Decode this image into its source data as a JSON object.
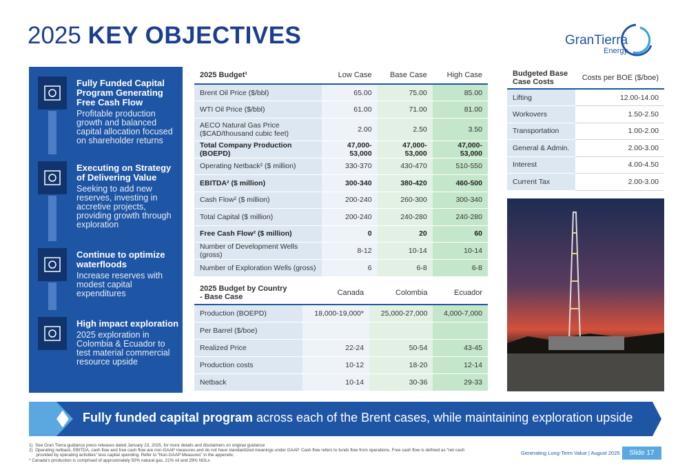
{
  "title": {
    "light": "2025",
    "bold": "KEY OBJECTIVES"
  },
  "logo": {
    "name": "GranTierra",
    "sub": "Energy"
  },
  "objectives": [
    {
      "heading": "Fully Funded Capital Program Generating Free Cash Flow",
      "body": "Profitable production growth and balanced capital allocation focused on shareholder returns"
    },
    {
      "heading": "Executing on Strategy of Delivering Value",
      "body": "Seeking to add new reserves, investing in accretive projects, providing growth through exploration"
    },
    {
      "heading": "Continue to optimize waterfloods",
      "body": "Increase reserves with modest capital expenditures"
    },
    {
      "heading": "High impact exploration",
      "body": "2025 exploration in Colombia & Ecuador to test material commercial resource upside"
    }
  ],
  "budget": {
    "header": [
      "2025 Budget¹",
      "Low Case",
      "Base Case",
      "High Case"
    ],
    "rows": [
      [
        "Brent Oil Price ($/bbl)",
        "65.00",
        "75.00",
        "85.00"
      ],
      [
        "WTI Oil Price ($/bbl)",
        "61.00",
        "71.00",
        "81.00"
      ],
      [
        "AECO Natural Gas Price\n($CAD/thousand cubic feet)",
        "2.00",
        "2.50",
        "3.50"
      ],
      [
        "Total Company Production (BOEPD)",
        "47,000-53,000",
        "47,000-53,000",
        "47,000-53,000"
      ],
      [
        "Operating Netback² ($ million)",
        "330-370",
        "430-470",
        "510-550"
      ],
      [
        "EBITDA² ($ million)",
        "300-340",
        "380-420",
        "460-500"
      ],
      [
        "Cash Flow² ($ million)",
        "200-240",
        "260-300",
        "300-340"
      ],
      [
        "Total Capital ($ million)",
        "200-240",
        "240-280",
        "240-280"
      ],
      [
        "Free Cash Flow² ($ million)",
        "0",
        "20",
        "60"
      ],
      [
        "Number of Development Wells (gross)",
        "8-12",
        "10-14",
        "10-14"
      ],
      [
        "Number of Exploration Wells (gross)",
        "6",
        "6-8",
        "6-8"
      ]
    ]
  },
  "country": {
    "header": [
      "2025 Budget by Country\n- Base Case",
      "Canada",
      "Colombia",
      "Ecuador"
    ],
    "rows": [
      [
        "Production (BOEPD)",
        "18,000-19,000*",
        "25,000-27,000",
        "4,000-7,000"
      ],
      [
        "Per Barrel ($/boe)",
        "",
        "",
        ""
      ],
      [
        "Realized Price",
        "22-24",
        "50-54",
        "43-45"
      ],
      [
        "Production costs",
        "10-12",
        "18-20",
        "12-14"
      ],
      [
        "Netback",
        "10-14",
        "30-36",
        "29-33"
      ]
    ]
  },
  "costs": {
    "header": [
      "Budgeted Base\nCase Costs",
      "Costs per BOE ($/boe)"
    ],
    "rows": [
      [
        "Lifting",
        "12.00-14.00"
      ],
      [
        "Workovers",
        "1.50-2.50"
      ],
      [
        "Transportation",
        "1.00-2.00"
      ],
      [
        "General & Admin.",
        "2.00-3.00"
      ],
      [
        "Interest",
        "4.00-4.50"
      ],
      [
        "Current Tax",
        "2.00-3.00"
      ]
    ]
  },
  "banner": {
    "bold": "Fully funded capital program",
    "rest": " across each of the Brent cases, while maintaining exploration upside"
  },
  "footnotes": [
    "1)  See Gran Tierra guidance press releases dated January 23, 2025, for more details and disclaimers on original guidance",
    "2)  Operating netback, EBITDA, cash flow and free cash flow are non-GAAP measures and do not have standardized meanings under GAAP. Cash flow refers to funds flow from operations. Free cash flow is defined as “net cash\n      provided by operating activities” less capital spending. Refer to “Non-GAAP Measures” in the appendix.",
    "* Canada's production is comprised of approximately 50% natural gas, 21% oil and 29% NGLs"
  ],
  "footer": {
    "tagline": "Generating Long-Term Value | August 2025",
    "slide": "Slide 17"
  }
}
